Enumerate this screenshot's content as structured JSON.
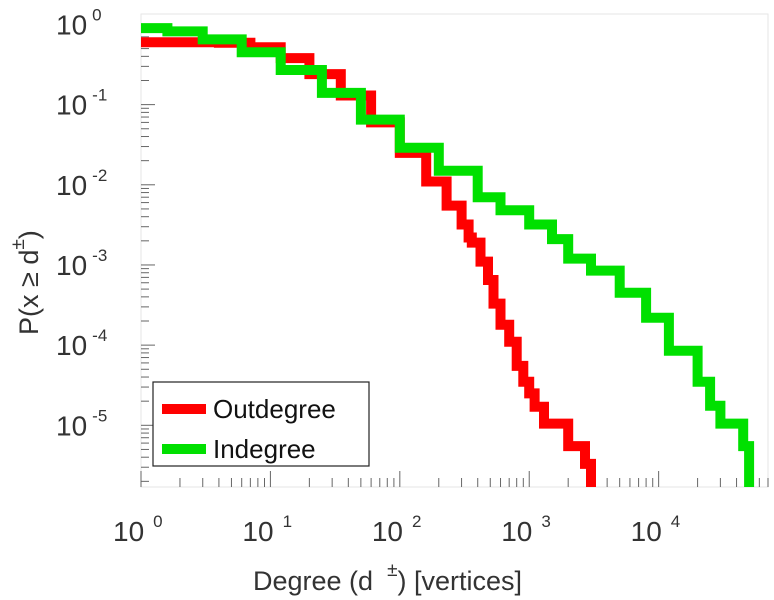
{
  "chart_data": {
    "type": "line",
    "scale": "log-log",
    "xlabel_main": "Degree (d",
    "xlabel_sup": "±",
    "xlabel_tail": ") [vertices]",
    "ylabel_main": "P(x ≥ d",
    "ylabel_sup": "±",
    "ylabel_tail": ")",
    "x_ticks": [
      {
        "base": "10",
        "exp": "0",
        "value": 1
      },
      {
        "base": "10",
        "exp": "1",
        "value": 10
      },
      {
        "base": "10",
        "exp": "2",
        "value": 100
      },
      {
        "base": "10",
        "exp": "3",
        "value": 1000
      },
      {
        "base": "10",
        "exp": "4",
        "value": 10000
      }
    ],
    "y_ticks": [
      {
        "base": "10",
        "exp": "0",
        "value": 1
      },
      {
        "base": "10",
        "exp": "-1",
        "value": 0.1
      },
      {
        "base": "10",
        "exp": "-2",
        "value": 0.01
      },
      {
        "base": "10",
        "exp": "-3",
        "value": 0.001
      },
      {
        "base": "10",
        "exp": "-4",
        "value": 0.0001
      },
      {
        "base": "10",
        "exp": "-5",
        "value": 1e-05
      }
    ],
    "xlim": [
      1,
      70000
    ],
    "ylim": [
      1.7e-06,
      1.35
    ],
    "legend_position": "bottom-left",
    "series": [
      {
        "name": "Outdegree",
        "color": "#ff0000",
        "x": [
          1,
          2,
          4,
          7,
          12,
          20,
          35,
          60,
          100,
          160,
          230,
          300,
          340,
          360,
          420,
          480,
          530,
          600,
          700,
          800,
          900,
          1000,
          1100,
          1300,
          1600,
          2000,
          2400,
          2700,
          3000,
          3000
        ],
        "y": [
          0.6,
          0.6,
          0.59,
          0.52,
          0.38,
          0.24,
          0.13,
          0.06,
          0.025,
          0.011,
          0.0055,
          0.0032,
          0.0022,
          0.0019,
          0.0011,
          0.00065,
          0.00033,
          0.00018,
          0.00011,
          5.5e-05,
          3.5e-05,
          2.5e-05,
          1.7e-05,
          1.05e-05,
          1.05e-05,
          5.5e-06,
          5.5e-06,
          3.3e-06,
          3.3e-06,
          1.7e-06
        ]
      },
      {
        "name": "Indegree",
        "color": "#00e000",
        "x": [
          1,
          1.6,
          3,
          6,
          12,
          25,
          50,
          100,
          200,
          400,
          600,
          1000,
          1500,
          2000,
          3000,
          5000,
          8000,
          12000,
          20000,
          25000,
          30000,
          40000,
          45000,
          50000,
          50000
        ],
        "y": [
          0.9,
          0.82,
          0.65,
          0.45,
          0.27,
          0.14,
          0.065,
          0.029,
          0.015,
          0.007,
          0.0048,
          0.0032,
          0.0021,
          0.0012,
          0.00085,
          0.00045,
          0.00022,
          8.5e-05,
          3.5e-05,
          1.75e-05,
          1.05e-05,
          1.05e-05,
          5.5e-06,
          5.5e-06,
          1.7e-06
        ]
      }
    ]
  }
}
